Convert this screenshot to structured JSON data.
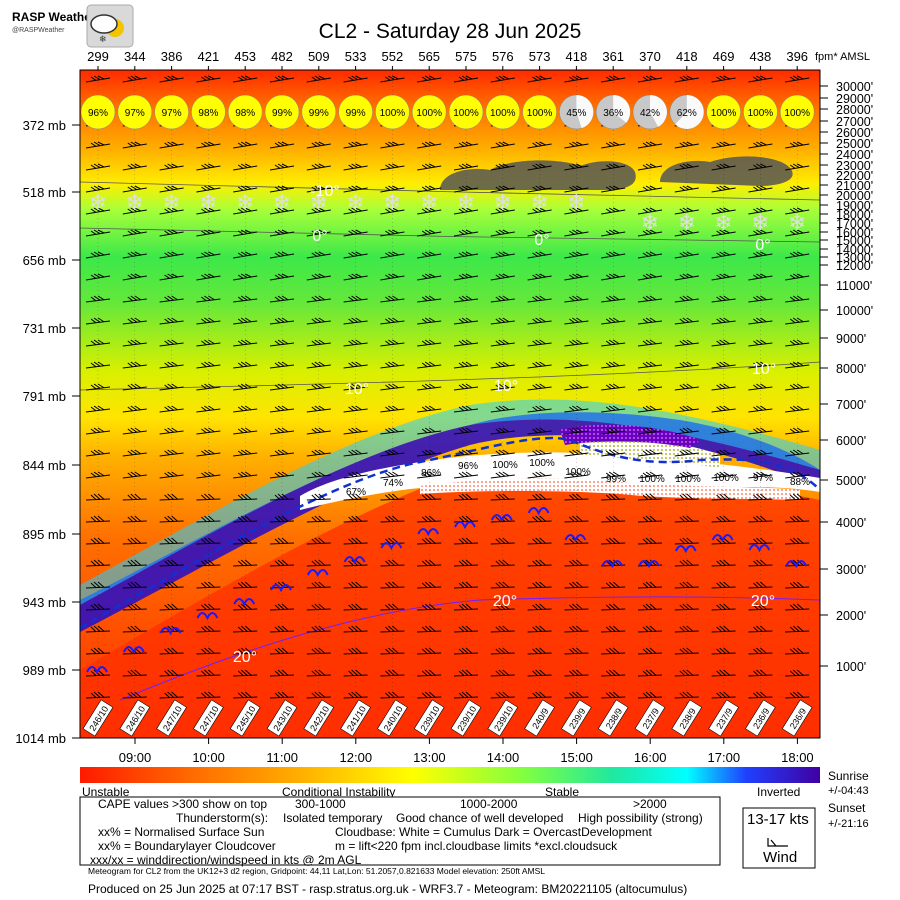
{
  "logo": {
    "name": "RASP Weather",
    "handle": "@RASPWeather"
  },
  "chart_data": {
    "type": "heatmap",
    "title": "CL2 - Saturday 28 Jun 2025",
    "top_unit_label": "fpm* AMSL",
    "hours": [
      "09:00",
      "10:00",
      "11:00",
      "12:00",
      "13:00",
      "14:00",
      "15:00",
      "16:00",
      "17:00",
      "18:00"
    ],
    "thermal_fpm": [
      299,
      344,
      386,
      421,
      453,
      482,
      509,
      533,
      552,
      565,
      575,
      576,
      573,
      418,
      361,
      370,
      418,
      469,
      438,
      396
    ],
    "sun_pct": [
      96,
      97,
      97,
      98,
      98,
      99,
      99,
      99,
      100,
      100,
      100,
      100,
      100,
      45,
      36,
      42,
      62,
      100,
      100,
      100
    ],
    "pressure_mb": [
      "372 mb",
      "518 mb",
      "656 mb",
      "731 mb",
      "791 mb",
      "844 mb",
      "895 mb",
      "943 mb",
      "989 mb",
      "1014 mb"
    ],
    "altitude_ft": [
      "30000'",
      "29000'",
      "28000'",
      "27000'",
      "26000'",
      "25000'",
      "24000'",
      "23000'",
      "22000'",
      "21000'",
      "20000'",
      "19000'",
      "18000'",
      "17000'",
      "16000'",
      "15000'",
      "14000'",
      "13000'",
      "12000'",
      "11000'",
      "10000'",
      "9000'",
      "8000'",
      "7000'",
      "6000'",
      "5000'",
      "4000'",
      "3000'",
      "2000'",
      "1000'"
    ],
    "isotherm_labels": [
      "-10°",
      "0°",
      "0°",
      "0°",
      "10°",
      "10°",
      "10°",
      "20°",
      "20°",
      "20°"
    ],
    "bl_cloud_pct": [
      "67%",
      "74%",
      "86%",
      "96%",
      "100%",
      "100%",
      "100%",
      "99%",
      "100%",
      "100%",
      "100%",
      "97%",
      "88%"
    ],
    "surface_wind": [
      "246/10",
      "246/10",
      "247/10",
      "247/10",
      "245/10",
      "243/10",
      "242/10",
      "241/10",
      "240/10",
      "239/10",
      "239/10",
      "239/10",
      "240/9",
      "239/9",
      "238/9",
      "237/9",
      "238/9",
      "237/9",
      "236/9",
      "236/9"
    ],
    "colorbar": {
      "labels": [
        "Unstable",
        "Conditional Instability",
        "Stable",
        "Inverted"
      ]
    }
  },
  "legend": {
    "cape_label": "CAPE values >300 show on top",
    "cape_ranges": [
      "300-1000",
      "1000-2000",
      ">2000"
    ],
    "thunder_label": "Thunderstorm(s):",
    "thunder_levels": [
      "Isolated temporary",
      "Good chance of well developed",
      "High possibility (strong)"
    ],
    "sun_note": "xx% = Normalised Surface Sun",
    "blc_note": "xx% = Boundarylayer Cloudcover",
    "wind_note": "xxx/xx = winddirection/windspeed in kts @ 2m AGL",
    "cloudbase_note": "Cloudbase: White = Cumulus    Dark = OvercastDevelopment",
    "m_note": "m = lift<220 fpm incl.cloudbase limits *excl.cloudsuck",
    "wind_box_speed": "13-17 kts",
    "wind_box_label": "Wind",
    "sunrise_label": "Sunrise",
    "sunrise_time": "+/-04:43",
    "sunset_label": "Sunset",
    "sunset_time": "+/-21:16",
    "model_note": "Meteogram for CL2 from the UK12+3 d2 region, Gridpoint: 44,11 Lat,Lon: 51.2057,0.821633 Model elevation: 250ft AMSL",
    "produced": "Produced on 25 Jun 2025 at 07:17 BST - rasp.stratus.org.uk - WRF3.7 - Meteogram: BM20221105 (altocumulus)"
  }
}
